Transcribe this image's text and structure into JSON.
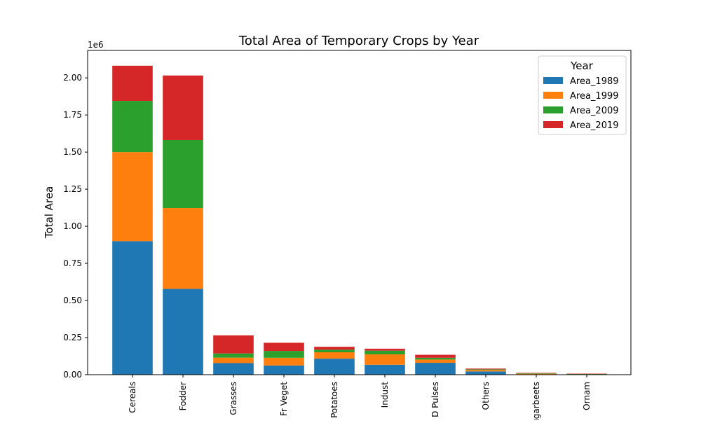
{
  "chart_data": {
    "type": "bar",
    "stacked": true,
    "title": "Total Area of Temporary Crops by Year",
    "xlabel": "",
    "ylabel": "Total Area",
    "y_offset_label": "1e6",
    "y_scale": 1000000,
    "ylim": [
      0,
      2185000
    ],
    "yticks": [
      0,
      250000,
      500000,
      750000,
      1000000,
      1250000,
      1500000,
      1750000,
      2000000
    ],
    "ytick_labels": [
      "0.00",
      "0.25",
      "0.50",
      "0.75",
      "1.00",
      "1.25",
      "1.50",
      "1.75",
      "2.00"
    ],
    "grid": false,
    "legend_position": "top-right",
    "legend_title": "Year",
    "categories": [
      "Cereals",
      "Fodder",
      "Grasses",
      "Fr Veget",
      "Potatoes",
      "Indust",
      "D Pulses",
      "Others",
      "Sugarbeets",
      "Ornam"
    ],
    "series": [
      {
        "name": "Area_1989",
        "color": "#1f77b4",
        "values": [
          900000,
          578000,
          78000,
          62000,
          108000,
          67000,
          80000,
          22000,
          2000,
          1000
        ]
      },
      {
        "name": "Area_1999",
        "color": "#ff7f0e",
        "values": [
          600000,
          545000,
          37000,
          52000,
          43000,
          70000,
          22000,
          10000,
          4000,
          1500
        ]
      },
      {
        "name": "Area_2009",
        "color": "#2ca02c",
        "values": [
          345000,
          458000,
          28000,
          46000,
          17000,
          25000,
          12000,
          4000,
          3000,
          2000
        ]
      },
      {
        "name": "Area_2019",
        "color": "#d62728",
        "values": [
          237000,
          435000,
          122000,
          55000,
          20000,
          13000,
          20000,
          5000,
          3000,
          2500
        ]
      }
    ]
  }
}
